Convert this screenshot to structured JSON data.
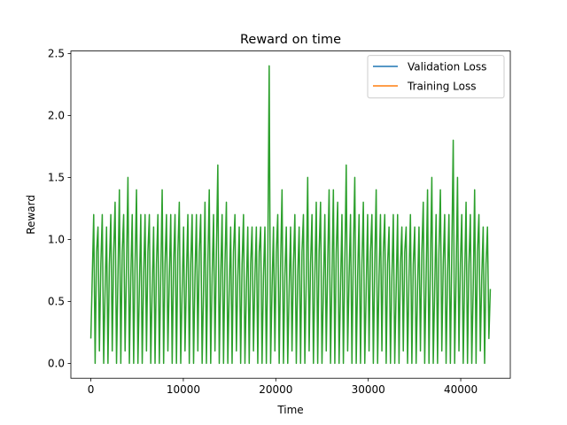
{
  "chart_data": {
    "type": "line",
    "title": "Reward on time",
    "xlabel": "Time",
    "ylabel": "Reward",
    "xlim": [
      -2160,
      45360
    ],
    "ylim": [
      -0.12,
      2.52
    ],
    "xticks": [
      0,
      10000,
      20000,
      30000,
      40000
    ],
    "xtick_labels": [
      "0",
      "10000",
      "20000",
      "30000",
      "40000"
    ],
    "yticks": [
      0.0,
      0.5,
      1.0,
      1.5,
      2.0,
      2.5
    ],
    "ytick_labels": [
      "0.0",
      "0.5",
      "1.0",
      "1.5",
      "2.0",
      "2.5"
    ],
    "grid": false,
    "legend_position": "top-right",
    "legend": [
      {
        "name": "Validation Loss",
        "color": "#1f77b4"
      },
      {
        "name": "Training Loss",
        "color": "#ff7f0e"
      }
    ],
    "series": [
      {
        "color": "#2ca02c",
        "x_range": [
          0,
          43200
        ],
        "sample_step": 150,
        "values": [
          0.2,
          0.7,
          1.2,
          0.0,
          0.9,
          1.1,
          0.1,
          0.8,
          1.2,
          0.0,
          0.6,
          1.1,
          0.0,
          0.8,
          1.2,
          0.1,
          0.9,
          1.3,
          0.0,
          0.7,
          1.4,
          0.0,
          0.9,
          1.2,
          0.1,
          0.8,
          1.5,
          0.0,
          0.7,
          1.2,
          0.0,
          0.8,
          1.4,
          0.0,
          0.6,
          1.2,
          0.0,
          0.7,
          1.2,
          0.1,
          0.9,
          1.2,
          0.0,
          0.6,
          1.1,
          0.0,
          0.8,
          1.2,
          0.0,
          0.7,
          1.4,
          0.0,
          0.8,
          1.2,
          0.1,
          0.7,
          1.2,
          0.0,
          0.8,
          1.2,
          0.0,
          0.9,
          1.3,
          0.0,
          0.6,
          1.1,
          0.1,
          0.7,
          1.2,
          0.0,
          0.8,
          1.2,
          0.0,
          0.7,
          1.2,
          0.1,
          0.9,
          1.2,
          0.0,
          0.6,
          1.3,
          0.0,
          0.8,
          1.4,
          0.0,
          0.7,
          1.2,
          0.1,
          0.9,
          1.6,
          0.0,
          0.7,
          1.2,
          0.0,
          0.8,
          1.3,
          0.0,
          0.6,
          1.1,
          0.0,
          0.9,
          1.2,
          0.1,
          0.7,
          1.1,
          0.0,
          0.8,
          1.2,
          0.0,
          0.6,
          1.1,
          0.0,
          0.8,
          1.1,
          0.1,
          0.7,
          1.1,
          0.0,
          0.9,
          1.1,
          0.0,
          0.7,
          1.1,
          0.0,
          0.8,
          2.4,
          0.0,
          0.6,
          1.1,
          0.1,
          0.9,
          1.2,
          0.0,
          0.8,
          1.4,
          0.0,
          0.7,
          1.1,
          0.0,
          0.6,
          1.1,
          0.1,
          0.8,
          1.2,
          0.0,
          0.7,
          1.1,
          0.0,
          0.9,
          1.2,
          0.0,
          0.7,
          1.5,
          0.1,
          0.8,
          1.2,
          0.0,
          0.7,
          1.3,
          0.0,
          0.9,
          1.3,
          0.0,
          0.6,
          1.2,
          0.1,
          0.8,
          1.4,
          0.0,
          0.7,
          1.4,
          0.0,
          0.9,
          1.3,
          0.0,
          0.6,
          1.2,
          0.0,
          0.8,
          1.6,
          0.1,
          0.7,
          1.2,
          0.0,
          0.9,
          1.5,
          0.0,
          0.7,
          1.2,
          0.0,
          0.8,
          1.3,
          0.0,
          0.6,
          1.2,
          0.1,
          0.9,
          1.2,
          0.0,
          0.8,
          1.4,
          0.0,
          0.7,
          1.2,
          0.1,
          0.9,
          1.2,
          0.0,
          0.8,
          1.1,
          0.0,
          0.7,
          1.2,
          0.0,
          0.6,
          1.2,
          0.0,
          0.8,
          1.1,
          0.1,
          0.9,
          1.1,
          0.0,
          0.7,
          1.2,
          0.0,
          0.8,
          1.1,
          0.0,
          0.6,
          1.1,
          0.1,
          0.9,
          1.3,
          0.0,
          0.7,
          1.4,
          0.0,
          0.8,
          1.5,
          0.0,
          0.6,
          1.2,
          0.0,
          0.9,
          1.4,
          0.1,
          0.8,
          1.2,
          0.0,
          0.7,
          1.2,
          0.0,
          0.9,
          1.8,
          0.0,
          0.7,
          1.5,
          0.1,
          0.8,
          1.2,
          0.0,
          0.7,
          1.3,
          0.0,
          0.8,
          1.2,
          0.0,
          0.6,
          1.4,
          0.0,
          0.9,
          1.2,
          0.1,
          0.7,
          1.1,
          0.0,
          0.8,
          1.1,
          0.2,
          0.6
        ]
      }
    ]
  }
}
